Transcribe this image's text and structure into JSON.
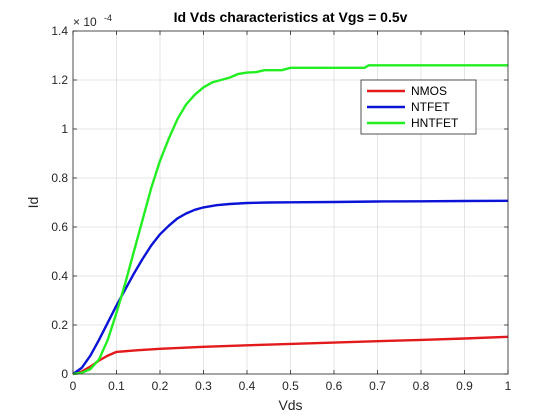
{
  "chart_data": {
    "type": "line",
    "title": "Id Vds characteristics at Vgs = 0.5v",
    "xlabel": "Vds",
    "ylabel": "Id",
    "xlim": [
      0,
      1
    ],
    "ylim": [
      0,
      1.4
    ],
    "y_scale_exponent": {
      "base": "× 10",
      "power": "-4"
    },
    "grid": true,
    "legend_position": "top-right",
    "x_ticks": [
      "0",
      "0.1",
      "0.2",
      "0.3",
      "0.4",
      "0.5",
      "0.6",
      "0.7",
      "0.8",
      "0.9",
      "1"
    ],
    "y_ticks": [
      "0",
      "0.2",
      "0.4",
      "0.6",
      "0.8",
      "1",
      "1.2",
      "1.4"
    ],
    "series": [
      {
        "name": "NMOS",
        "color": "#e31a1c",
        "x": [
          0,
          0.02,
          0.04,
          0.06,
          0.08,
          0.1,
          0.15,
          0.2,
          0.3,
          0.4,
          0.5,
          0.6,
          0.7,
          0.8,
          0.9,
          1.0
        ],
        "y": [
          0,
          0.01,
          0.03,
          0.055,
          0.075,
          0.09,
          0.097,
          0.103,
          0.111,
          0.117,
          0.123,
          0.128,
          0.134,
          0.139,
          0.145,
          0.152
        ]
      },
      {
        "name": "NTFET",
        "color": "#0b13d6",
        "x": [
          0,
          0.02,
          0.04,
          0.06,
          0.08,
          0.1,
          0.12,
          0.14,
          0.16,
          0.18,
          0.2,
          0.22,
          0.24,
          0.26,
          0.28,
          0.3,
          0.33,
          0.36,
          0.4,
          0.45,
          0.5,
          0.6,
          0.7,
          0.8,
          0.9,
          1.0
        ],
        "y": [
          0,
          0.025,
          0.075,
          0.14,
          0.21,
          0.28,
          0.345,
          0.41,
          0.47,
          0.525,
          0.57,
          0.605,
          0.635,
          0.655,
          0.67,
          0.68,
          0.689,
          0.694,
          0.698,
          0.7,
          0.701,
          0.702,
          0.704,
          0.705,
          0.706,
          0.707
        ]
      },
      {
        "name": "HNTFET",
        "color": "#22ee22",
        "x": [
          0,
          0.02,
          0.04,
          0.06,
          0.08,
          0.1,
          0.12,
          0.14,
          0.16,
          0.18,
          0.2,
          0.22,
          0.24,
          0.26,
          0.28,
          0.3,
          0.32,
          0.34,
          0.36,
          0.38,
          0.4,
          0.42,
          0.44,
          0.46,
          0.48,
          0.5,
          0.55,
          0.6,
          0.65,
          0.67,
          0.68,
          0.7,
          0.8,
          0.9,
          1.0
        ],
        "y": [
          0,
          0.005,
          0.02,
          0.06,
          0.14,
          0.25,
          0.37,
          0.5,
          0.63,
          0.76,
          0.87,
          0.96,
          1.04,
          1.1,
          1.14,
          1.17,
          1.19,
          1.2,
          1.21,
          1.225,
          1.23,
          1.232,
          1.24,
          1.24,
          1.24,
          1.25,
          1.25,
          1.25,
          1.25,
          1.25,
          1.26,
          1.26,
          1.26,
          1.26,
          1.26
        ]
      }
    ]
  }
}
